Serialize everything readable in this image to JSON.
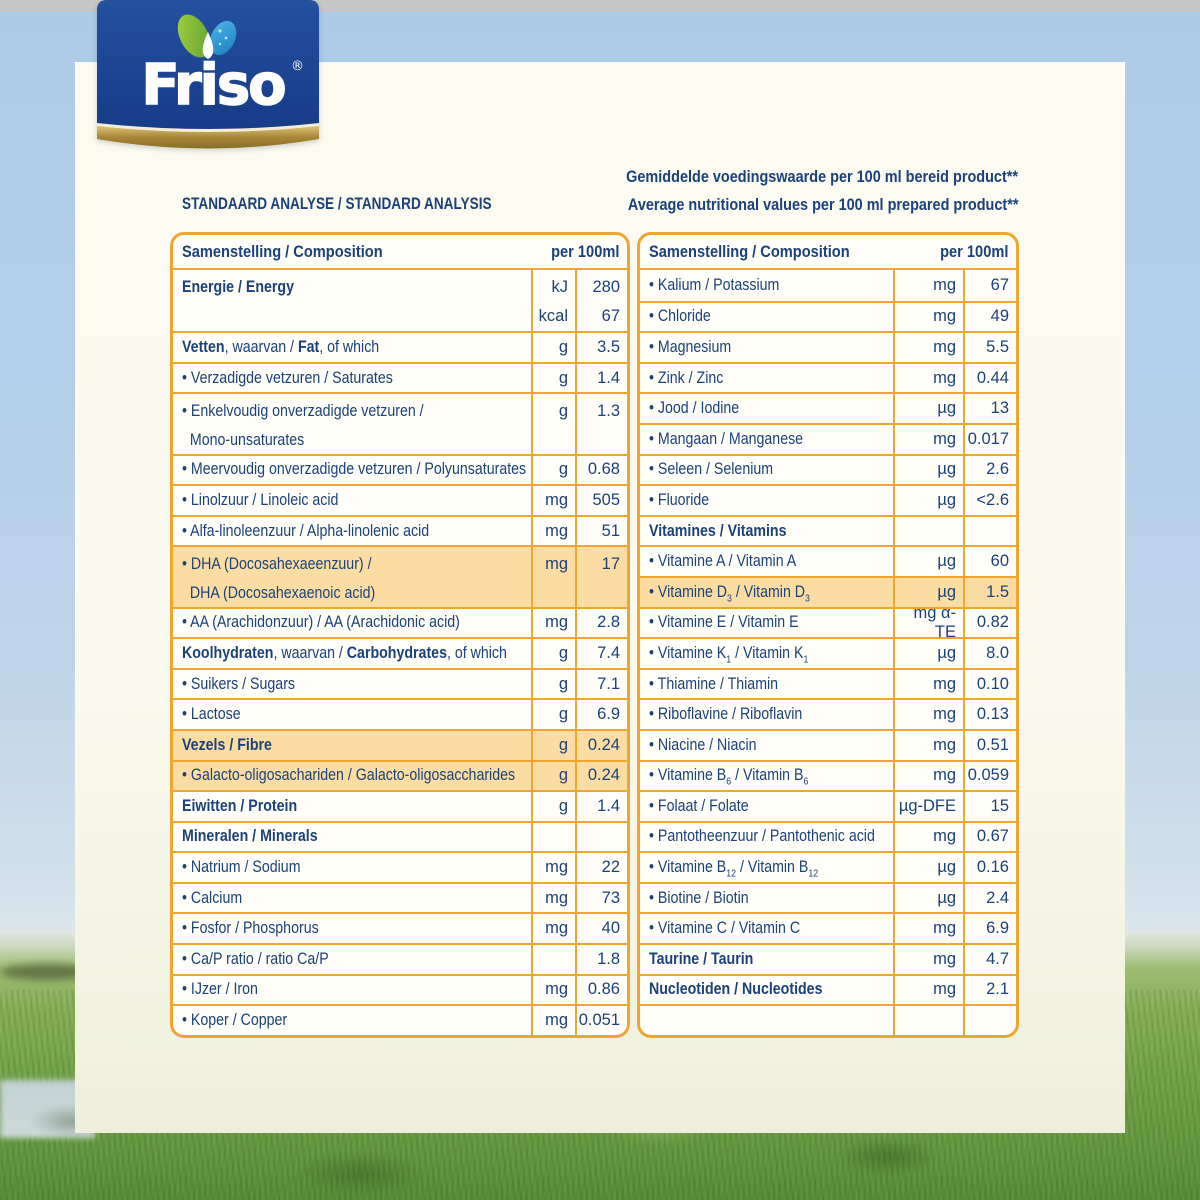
{
  "logo": {
    "brand": "Friso",
    "registered": "®"
  },
  "header": {
    "title": "STANDAARD ANALYSE / STANDARD ANALYSIS",
    "note_line1": "Gemiddelde voedingswaarde per 100 ml bereid product**",
    "note_line2": "Average nutritional values per 100 ml prepared product**"
  },
  "colors": {
    "table_border_gold": "#f0a62e",
    "text_navy": "#1b4179",
    "row_highlight_peach": "#fbdda4",
    "panel_cream": "#fbfaef",
    "sky_blue": "#aecbe8",
    "grass_green": "#73a349",
    "logo_blue": "#1c4392",
    "logo_gold": "#a88738"
  },
  "tables": [
    {
      "header": {
        "label": "Samenstelling / Composition",
        "per": "per 100ml"
      },
      "rows": [
        {
          "label": "**Energie / Energy**",
          "unit": [
            "kJ",
            "kcal"
          ],
          "value": [
            "280",
            "67"
          ],
          "h2": true
        },
        {
          "label": "**Vetten**, waarvan / **Fat**, of which",
          "unit": "g",
          "value": "3.5"
        },
        {
          "label": "• Verzadigde vetzuren / Saturates",
          "unit": "g",
          "value": "1.4"
        },
        {
          "label": "• Enkelvoudig onverzadigde vetzuren /\n  Mono-unsaturates",
          "unit": "g",
          "value": "1.3",
          "h2": true
        },
        {
          "label": "• Meervoudig onverzadigde vetzuren / Polyunsaturates",
          "unit": "g",
          "value": "0.68"
        },
        {
          "label": "• Linolzuur / Linoleic acid",
          "unit": "mg",
          "value": "505"
        },
        {
          "label": "• Alfa-linoleenzuur / Alpha-linolenic acid",
          "unit": "mg",
          "value": "51"
        },
        {
          "label": "• DHA (Docosahexaeenzuur) /\n  DHA (Docosahexaenoic acid)",
          "unit": "mg",
          "value": "17",
          "h2": true,
          "hl": true
        },
        {
          "label": "• AA (Arachidonzuur) / AA (Arachidonic acid)",
          "unit": "mg",
          "value": "2.8"
        },
        {
          "label": "**Koolhydraten**, waarvan / **Carbohydrates**, of which",
          "unit": "g",
          "value": "7.4"
        },
        {
          "label": "• Suikers / Sugars",
          "unit": "g",
          "value": "7.1"
        },
        {
          "label": "• Lactose",
          "unit": "g",
          "value": "6.9"
        },
        {
          "label": "**Vezels / Fibre**",
          "unit": "g",
          "value": "0.24",
          "hl": true
        },
        {
          "label": "• Galacto-oligosachariden / Galacto-oligosaccharides",
          "unit": "g",
          "value": "0.24",
          "hl": true
        },
        {
          "label": "**Eiwitten / Protein**",
          "unit": "g",
          "value": "1.4"
        },
        {
          "label": "**Mineralen / Minerals**",
          "unit": "",
          "value": ""
        },
        {
          "label": "• Natrium / Sodium",
          "unit": "mg",
          "value": "22"
        },
        {
          "label": "• Calcium",
          "unit": "mg",
          "value": "73"
        },
        {
          "label": "• Fosfor / Phosphorus",
          "unit": "mg",
          "value": "40"
        },
        {
          "label": "• Ca/P ratio / ratio Ca/P",
          "unit": "",
          "value": "1.8"
        },
        {
          "label": "• IJzer / Iron",
          "unit": "mg",
          "value": "0.86"
        },
        {
          "label": "• Koper / Copper",
          "unit": "mg",
          "value": "0.051"
        }
      ]
    },
    {
      "header": {
        "label": "Samenstelling / Composition",
        "per": "per 100ml"
      },
      "rows": [
        {
          "label": "• Kalium / Potassium",
          "unit": "mg",
          "value": "67"
        },
        {
          "label": "• Chloride",
          "unit": "mg",
          "value": "49"
        },
        {
          "label": "• Magnesium",
          "unit": "mg",
          "value": "5.5"
        },
        {
          "label": "• Zink / Zinc",
          "unit": "mg",
          "value": "0.44"
        },
        {
          "label": "• Jood / Iodine",
          "unit": "µg",
          "value": "13"
        },
        {
          "label": "• Mangaan / Manganese",
          "unit": "mg",
          "value": "0.017"
        },
        {
          "label": "• Seleen / Selenium",
          "unit": "µg",
          "value": "2.6"
        },
        {
          "label": "• Fluoride",
          "unit": "µg",
          "value": "<2.6"
        },
        {
          "label": "**Vitamines / Vitamins**",
          "unit": "",
          "value": ""
        },
        {
          "label": "• Vitamine A / Vitamin A",
          "unit": "µg",
          "value": "60"
        },
        {
          "label": "• Vitamine D~3~ / Vitamin D~3~",
          "unit": "µg",
          "value": "1.5",
          "hl": true
        },
        {
          "label": "• Vitamine E / Vitamin E",
          "unit": "mg α-TE",
          "value": "0.82"
        },
        {
          "label": "• Vitamine K~1~ / Vitamin K~1~",
          "unit": "µg",
          "value": "8.0"
        },
        {
          "label": "• Thiamine / Thiamin",
          "unit": "mg",
          "value": "0.10"
        },
        {
          "label": "• Riboflavine / Riboflavin",
          "unit": "mg",
          "value": "0.13"
        },
        {
          "label": "• Niacine / Niacin",
          "unit": "mg",
          "value": "0.51"
        },
        {
          "label": "• Vitamine B~6~ / Vitamin B~6~",
          "unit": "mg",
          "value": "0.059"
        },
        {
          "label": "• Folaat / Folate",
          "unit": "µg-DFE",
          "value": "15"
        },
        {
          "label": "• Pantotheenzuur / Pantothenic acid",
          "unit": "mg",
          "value": "0.67"
        },
        {
          "label": "• Vitamine B~12~ / Vitamin B~12~",
          "unit": "µg",
          "value": "0.16"
        },
        {
          "label": "• Biotine / Biotin",
          "unit": "µg",
          "value": "2.4"
        },
        {
          "label": "• Vitamine C / Vitamin C",
          "unit": "mg",
          "value": "6.9"
        },
        {
          "label": "**Taurine / Taurin**",
          "unit": "mg",
          "value": "4.7"
        },
        {
          "label": "**Nucleotiden / Nucleotides**",
          "unit": "mg",
          "value": "2.1"
        },
        {
          "label": "",
          "unit": "",
          "value": ""
        }
      ]
    }
  ]
}
